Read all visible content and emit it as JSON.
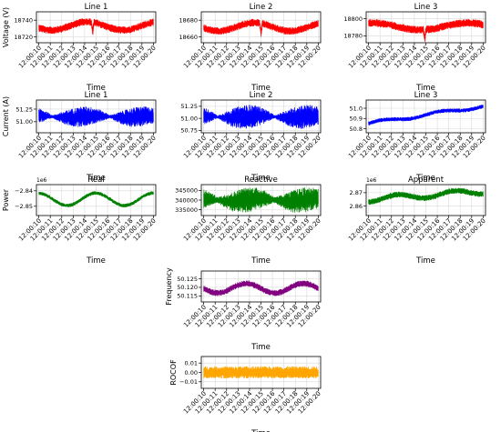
{
  "time_ticks": [
    "12:00:10",
    "12:00:11",
    "12:00:12",
    "12:00:13",
    "12:00:14",
    "12:00:15",
    "12:00:16",
    "12:00:17",
    "12:00:18",
    "12:00:19",
    "12:00:20"
  ],
  "xlabel": "Time",
  "chart_data": [
    {
      "id": "voltage-line-1",
      "type": "line",
      "title": "Line 1",
      "ylabel": "Voltage (V)",
      "color": "#ff0000",
      "yticks": [
        "18720",
        "18740"
      ],
      "ytick_values": [
        18720,
        18740
      ],
      "ylim": [
        18713,
        18750
      ],
      "signal": {
        "base": 18733,
        "amp": 5,
        "noise": 4.5,
        "periods": 1.6,
        "phase": 3.6,
        "dip_at": 0.47,
        "dip": -14
      }
    },
    {
      "id": "voltage-line-2",
      "type": "line",
      "title": "Line 2",
      "ylabel": "",
      "color": "#ff0000",
      "yticks": [
        "18660",
        "18680"
      ],
      "ytick_values": [
        18660,
        18680
      ],
      "ylim": [
        18653,
        18690
      ],
      "signal": {
        "base": 18672,
        "amp": 5,
        "noise": 4.5,
        "periods": 1.6,
        "phase": 3.4,
        "dip_at": 0.5,
        "dip": -14
      }
    },
    {
      "id": "voltage-line-3",
      "type": "line",
      "title": "Line 3",
      "ylabel": "",
      "color": "#ff0000",
      "yticks": [
        "18780",
        "18800"
      ],
      "ytick_values": [
        18780,
        18800
      ],
      "ylim": [
        18772,
        18808
      ],
      "signal": {
        "base": 18791,
        "amp": 4,
        "noise": 4.5,
        "periods": 1.2,
        "phase": 1.3,
        "dip_at": 0.49,
        "dip": -12
      }
    },
    {
      "id": "current-line-1",
      "type": "line",
      "title": "Line 1",
      "ylabel": "Current (A)",
      "color": "#0000ff",
      "yticks": [
        "51.00",
        "51.25"
      ],
      "ytick_values": [
        51.0,
        51.25
      ],
      "ylim": [
        50.78,
        51.43
      ],
      "signal": {
        "base": 51.1,
        "amp": 0.02,
        "envelope": [
          0.2,
          0.03
        ],
        "periods": 2,
        "phase": 1.6
      }
    },
    {
      "id": "current-line-2",
      "type": "line",
      "title": "Line 2",
      "ylabel": "",
      "color": "#0000ff",
      "yticks": [
        "50.75",
        "51.00",
        "51.25"
      ],
      "ytick_values": [
        50.75,
        51.0,
        51.25
      ],
      "ylim": [
        50.7,
        51.38
      ],
      "signal": {
        "base": 51.03,
        "amp": 0.02,
        "envelope": [
          0.25,
          0.03
        ],
        "periods": 2,
        "phase": 1.6
      }
    },
    {
      "id": "current-line-3",
      "type": "line",
      "title": "Line 3",
      "ylabel": "",
      "color": "#0000ff",
      "yticks": [
        "50.8",
        "50.9",
        "51.0"
      ],
      "ytick_values": [
        50.8,
        50.9,
        51.0
      ],
      "ylim": [
        50.76,
        51.08
      ],
      "signal": {
        "base": 50.85,
        "trend": 0.17,
        "amp": 0.015,
        "noise": 0.02,
        "periods": 2,
        "phase": 0
      }
    },
    {
      "id": "power-real",
      "type": "line",
      "title": "Real",
      "ylabel": "Power",
      "offset_text": "1e6",
      "color": "#008000",
      "yticks": [
        "−2.85",
        "−2.84"
      ],
      "ytick_values": [
        -2.85,
        -2.84
      ],
      "ylim": [
        -2.856,
        -2.836
      ],
      "signal": {
        "base": -2.8455,
        "amp": 0.004,
        "noise": 0.0012,
        "periods": 2,
        "phase": 1.6
      }
    },
    {
      "id": "power-reactive",
      "type": "line",
      "title": "Reactive",
      "ylabel": "",
      "color": "#008000",
      "yticks": [
        "335000",
        "340000",
        "345000"
      ],
      "ytick_values": [
        335000,
        340000,
        345000
      ],
      "ylim": [
        332000,
        348000
      ],
      "signal": {
        "base": 340000,
        "amp": 800,
        "envelope": [
          6500,
          1500
        ],
        "periods": 2,
        "phase": 1.6
      }
    },
    {
      "id": "power-apparent",
      "type": "line",
      "title": "Apparent",
      "ylabel": "",
      "offset_text": "1e6",
      "color": "#008000",
      "yticks": [
        "2.86",
        "2.87"
      ],
      "ytick_values": [
        2.86,
        2.87
      ],
      "ylim": [
        2.853,
        2.876
      ],
      "signal": {
        "base": 2.865,
        "trend": 0.006,
        "amp": 0.002,
        "noise": 0.0022,
        "periods": 2,
        "phase": -1.6
      }
    },
    {
      "id": "frequency",
      "type": "line",
      "title": "",
      "ylabel": "Frequency",
      "color": "#800080",
      "yticks": [
        "50.115",
        "50.120",
        "50.125"
      ],
      "ytick_values": [
        50.115,
        50.12,
        50.125
      ],
      "ylim": [
        50.1115,
        50.1295
      ],
      "signal": {
        "base": 50.1195,
        "amp": 0.0028,
        "noise": 0.0018,
        "periods": 2,
        "phase": 3.2
      }
    },
    {
      "id": "rocof",
      "type": "line",
      "title": "",
      "ylabel": "ROCOF",
      "color": "#ffa500",
      "yticks": [
        "−0.01",
        "0.00",
        "0.01"
      ],
      "ytick_values": [
        -0.01,
        0,
        0.01
      ],
      "ylim": [
        -0.017,
        0.017
      ],
      "signal": {
        "base": 0,
        "amp": 0.0,
        "noise": 0.0065,
        "periods": 2,
        "phase": 0
      }
    }
  ]
}
